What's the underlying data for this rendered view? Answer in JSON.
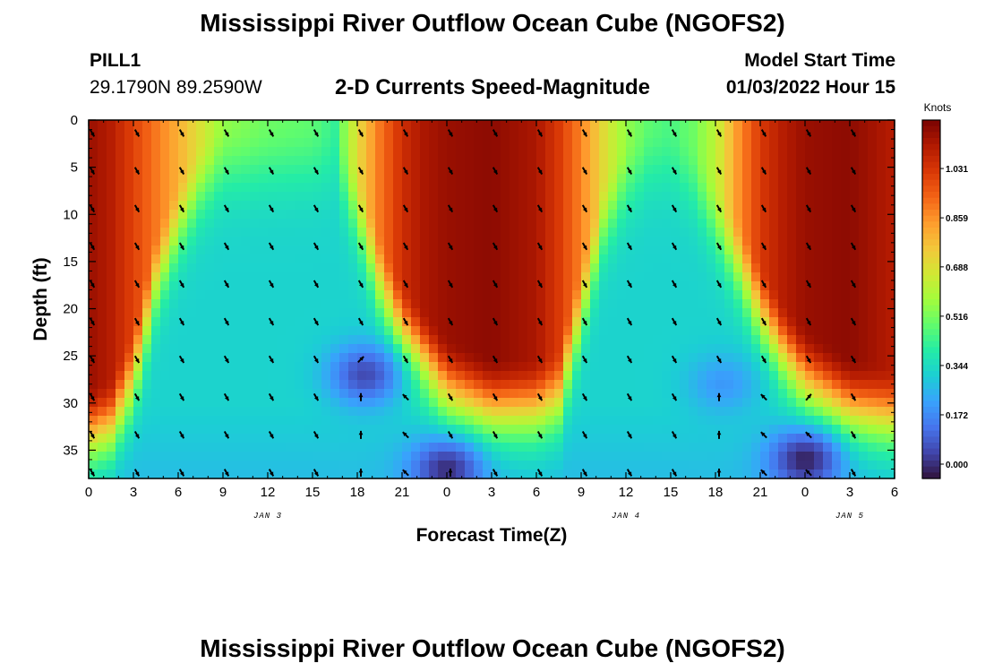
{
  "header": {
    "title": "Mississippi River Outflow Ocean Cube (NGOFS2)",
    "station": "PILL1",
    "coordinates": "29.1790N  89.2590W",
    "subtitle": "2-D Currents Speed-Magnitude",
    "model_start_label": "Model Start Time",
    "model_start_value": "01/03/2022 Hour 15"
  },
  "footer": {
    "title": "Mississippi River Outflow Ocean Cube (NGOFS2)"
  },
  "chart_data": {
    "type": "heatmap",
    "xlabel": "Forecast Time(Z)",
    "ylabel": "Depth (ft)",
    "x_ticks": [
      "0",
      "3",
      "6",
      "9",
      "12",
      "15",
      "18",
      "21",
      "0",
      "3",
      "6",
      "9",
      "12",
      "15",
      "18",
      "21",
      "0",
      "3",
      "6"
    ],
    "x_range_hours": [
      0,
      54
    ],
    "day_labels": [
      {
        "label": "JAN 3",
        "hour": 12
      },
      {
        "label": "JAN 4",
        "hour": 36
      },
      {
        "label": "JAN 5",
        "hour": 51
      }
    ],
    "y_ticks": [
      0,
      5,
      10,
      15,
      20,
      25,
      30,
      35
    ],
    "y_range": [
      0,
      38
    ],
    "y_inverted": true,
    "colorbar": {
      "units": "Knots",
      "ticks": [
        "1.031",
        "0.859",
        "0.688",
        "0.516",
        "0.344",
        "0.172",
        "0.000"
      ],
      "range": [
        -0.05,
        1.2
      ]
    },
    "speed_profile": [
      {
        "hour": 0,
        "surface": 1.15,
        "interface_depth": 28
      },
      {
        "hour": 1.5,
        "surface": 1.1,
        "interface_depth": 27
      },
      {
        "hour": 3,
        "surface": 1.0,
        "interface_depth": 22
      },
      {
        "hour": 4.5,
        "surface": 0.9,
        "interface_depth": 12
      },
      {
        "hour": 6,
        "surface": 0.8,
        "interface_depth": 6
      },
      {
        "hour": 7.5,
        "surface": 0.68,
        "interface_depth": 2
      },
      {
        "hour": 9,
        "surface": 0.55,
        "interface_depth": 0
      },
      {
        "hour": 12,
        "surface": 0.5,
        "interface_depth": 0
      },
      {
        "hour": 15,
        "surface": 0.48,
        "interface_depth": 0
      },
      {
        "hour": 16.5,
        "surface": 0.42,
        "interface_depth": 0
      },
      {
        "hour": 18,
        "surface": 0.7,
        "interface_depth": 5
      },
      {
        "hour": 19.5,
        "surface": 0.9,
        "interface_depth": 12
      },
      {
        "hour": 21,
        "surface": 1.05,
        "interface_depth": 17
      },
      {
        "hour": 22.5,
        "surface": 1.12,
        "interface_depth": 20
      },
      {
        "hour": 24,
        "surface": 1.15,
        "interface_depth": 23
      },
      {
        "hour": 27,
        "surface": 1.17,
        "interface_depth": 25
      },
      {
        "hour": 30,
        "surface": 1.12,
        "interface_depth": 25
      },
      {
        "hour": 31.5,
        "surface": 1.02,
        "interface_depth": 24
      },
      {
        "hour": 33,
        "surface": 0.88,
        "interface_depth": 15
      },
      {
        "hour": 34.5,
        "surface": 0.7,
        "interface_depth": 6
      },
      {
        "hour": 36,
        "surface": 0.55,
        "interface_depth": 2
      },
      {
        "hour": 37.5,
        "surface": 0.48,
        "interface_depth": 0
      },
      {
        "hour": 39,
        "surface": 0.45,
        "interface_depth": 0
      },
      {
        "hour": 40.5,
        "surface": 0.5,
        "interface_depth": 2
      },
      {
        "hour": 42,
        "surface": 0.62,
        "interface_depth": 6
      },
      {
        "hour": 43.5,
        "surface": 0.85,
        "interface_depth": 10
      },
      {
        "hour": 45,
        "surface": 1.02,
        "interface_depth": 15
      },
      {
        "hour": 46.5,
        "surface": 1.1,
        "interface_depth": 19
      },
      {
        "hour": 48,
        "surface": 1.15,
        "interface_depth": 22
      },
      {
        "hour": 51,
        "surface": 1.17,
        "interface_depth": 25
      },
      {
        "hour": 54,
        "surface": 1.1,
        "interface_depth": 26
      }
    ],
    "low_speed_spots": [
      {
        "hour": 18.5,
        "depth": 27,
        "value": 0.05
      },
      {
        "hour": 24,
        "depth": 37,
        "value": 0.0
      },
      {
        "hour": 48,
        "depth": 36,
        "value": -0.02
      },
      {
        "hour": 42.5,
        "depth": 28,
        "value": 0.2
      }
    ],
    "arrow_rows_depth": [
      1,
      5,
      9,
      13,
      17,
      21,
      25,
      29,
      33,
      37
    ],
    "arrow_columns_hour": [
      0,
      3,
      6,
      9,
      12,
      15,
      18,
      21,
      24,
      27,
      30,
      33,
      36,
      39,
      42,
      45,
      48,
      51
    ],
    "arrow_reversals": [
      {
        "hour": 18,
        "depth_from": 29,
        "note": "upward"
      },
      {
        "hour": 21,
        "depth_from": 29,
        "note": "upward-left"
      },
      {
        "hour": 24,
        "depth_from": 37,
        "note": "upward"
      },
      {
        "hour": 42,
        "depth_from": 29,
        "note": "upward"
      },
      {
        "hour": 45,
        "depth_from": 29,
        "note": "upward-left"
      },
      {
        "hour": 48,
        "depth_from": 33,
        "note": "upward-left"
      }
    ]
  },
  "colors": {
    "background": "#ffffff",
    "axis": "#000000",
    "arrow": "#000000",
    "colormap": [
      "#30123b",
      "#4145ab",
      "#4675ed",
      "#39a2fc",
      "#1bcfd4",
      "#24eca6",
      "#61fc6c",
      "#a4fc3b",
      "#d1e834",
      "#f3c63a",
      "#fe9b2d",
      "#f36315",
      "#d93806",
      "#b11901",
      "#7a0402"
    ]
  }
}
